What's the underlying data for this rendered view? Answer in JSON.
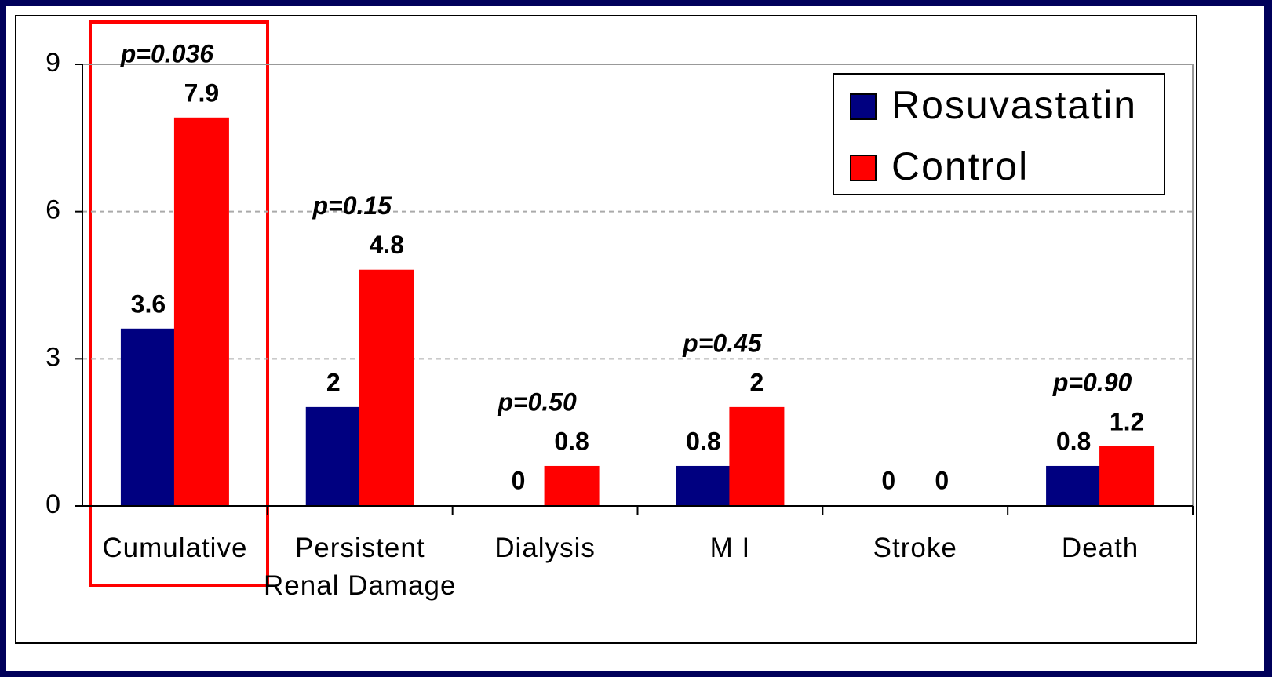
{
  "chart_data": {
    "type": "bar",
    "categories": [
      "Cumulative",
      "Persistent\nRenal Damage",
      "Dialysis",
      "M I",
      "Stroke",
      "Death"
    ],
    "series": [
      {
        "name": "Rosuvastatin",
        "color": "#000080",
        "values": [
          3.6,
          2,
          0,
          0.8,
          0,
          0.8
        ]
      },
      {
        "name": "Control",
        "color": "#ff0000",
        "values": [
          7.9,
          4.8,
          0.8,
          2,
          0,
          1.2
        ]
      }
    ],
    "annotations": [
      "p=0.036",
      "p=0.15",
      "p=0.50",
      "p=0.45",
      null,
      "p=0.90"
    ],
    "ylim": [
      0,
      9
    ],
    "yticks": [
      0,
      3,
      6,
      9
    ],
    "grid": true,
    "legend": "upper right"
  }
}
